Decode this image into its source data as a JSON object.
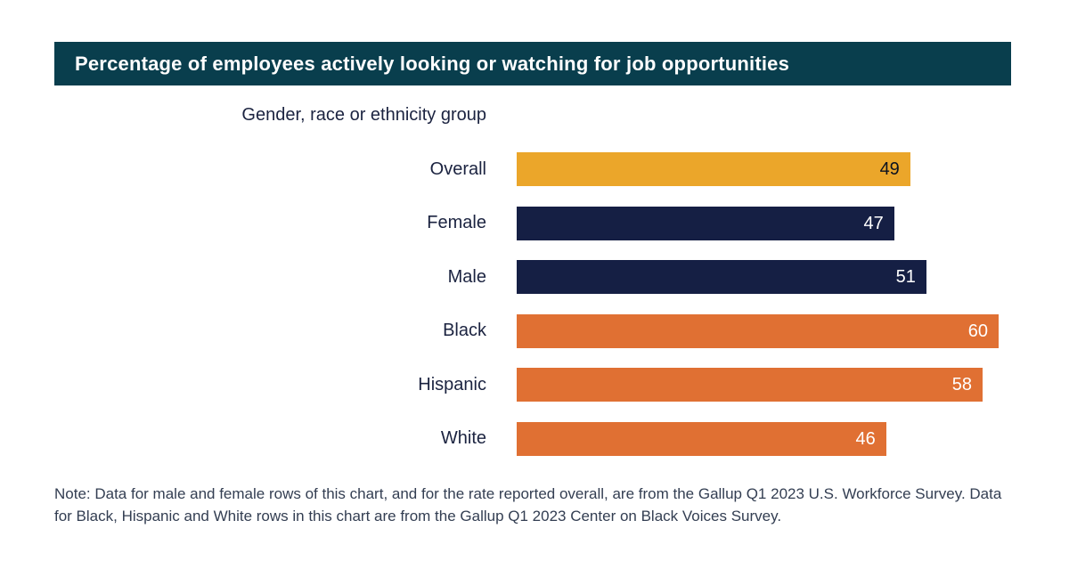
{
  "banner": {
    "title": "Percentage of employees actively looking or watching for job opportunities",
    "background_color": "#093E4D",
    "text_color": "#ffffff"
  },
  "chart_data": {
    "type": "bar",
    "orientation": "horizontal",
    "title": "Percentage of employees actively looking or watching for job opportunities",
    "group_axis_label": "Gender, race or ethnicity group",
    "categories": [
      "Overall",
      "Female",
      "Male",
      "Black",
      "Hispanic",
      "White"
    ],
    "values": [
      49,
      47,
      51,
      60,
      58,
      46
    ],
    "xlim": [
      0,
      60
    ],
    "grid": false,
    "legend": false,
    "value_labels_inside_bars": true,
    "bar_colors": [
      "#EBA62A",
      "#151F44",
      "#151F44",
      "#E07033",
      "#E07033",
      "#E07033"
    ],
    "value_label_colors": [
      "#0C1220",
      "#FFFFFF",
      "#FFFFFF",
      "#FFFFFF",
      "#FFFFFF",
      "#FFFFFF"
    ],
    "category_label_color": "#1B2340"
  },
  "note": {
    "lines": [
      "Note: Data for male and female rows of this chart, and for the rate reported overall, are from the Gallup Q1 2023 U.S. Workforce Survey. Data",
      "for Black, Hispanic and White rows in this chart are from the Gallup Q1 2023 Center on Black Voices Survey."
    ]
  }
}
